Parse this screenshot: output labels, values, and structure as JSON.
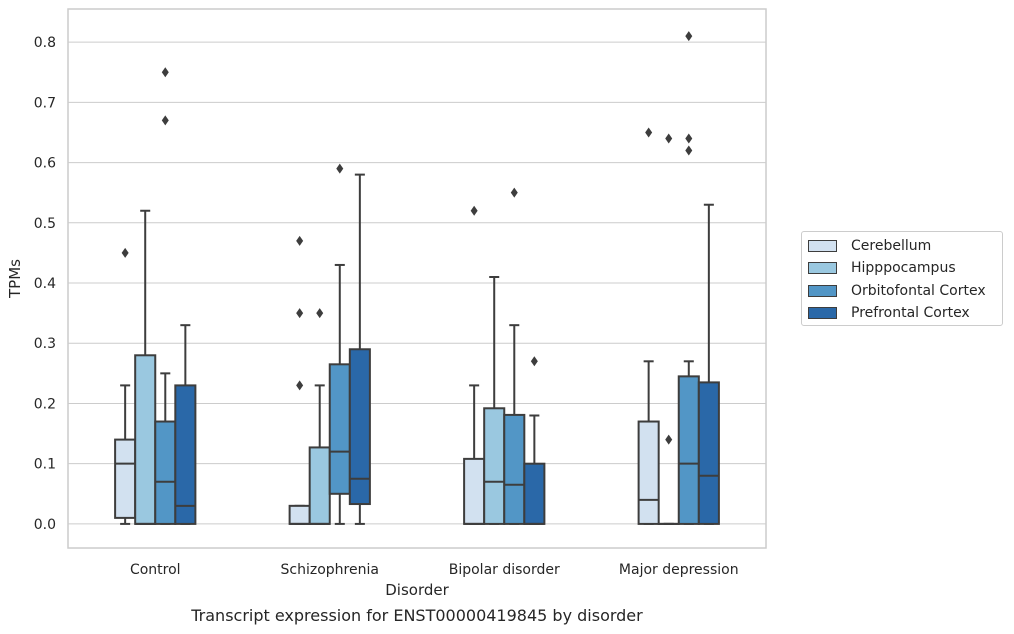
{
  "chart_data": {
    "type": "box",
    "xlabel": "Disorder",
    "ylabel": "TPMs",
    "ylim": [
      -0.04,
      0.855
    ],
    "yticks": [
      "0.0",
      "0.1",
      "0.2",
      "0.3",
      "0.4",
      "0.5",
      "0.6",
      "0.7",
      "0.8"
    ],
    "grid": true,
    "legend_position": "right",
    "categories": [
      "Control",
      "Schizophrenia",
      "Bipolar disorder",
      "Major depression"
    ],
    "series": [
      {
        "name": "Cerebellum",
        "color": "#d2e1f0",
        "boxes": [
          {
            "q1": 0.01,
            "median": 0.1,
            "q3": 0.14,
            "whislo": 0.0,
            "whishi": 0.23,
            "fliers": [
              0.45
            ]
          },
          {
            "q1": 0.0,
            "median": 0.0,
            "q3": 0.03,
            "whislo": 0.0,
            "whishi": 0.03,
            "fliers": [
              0.23,
              0.35,
              0.47
            ]
          },
          {
            "q1": 0.0,
            "median": 0.0,
            "q3": 0.108,
            "whislo": 0.0,
            "whishi": 0.23,
            "fliers": [
              0.52
            ]
          },
          {
            "q1": 0.0,
            "median": 0.04,
            "q3": 0.17,
            "whislo": 0.0,
            "whishi": 0.27,
            "fliers": [
              0.65
            ]
          }
        ]
      },
      {
        "name": "Hipppocampus",
        "color": "#9ac8e0",
        "boxes": [
          {
            "q1": 0.0,
            "median": 0.0,
            "q3": 0.28,
            "whislo": 0.0,
            "whishi": 0.52,
            "fliers": []
          },
          {
            "q1": 0.0,
            "median": 0.0,
            "q3": 0.127,
            "whislo": 0.0,
            "whishi": 0.23,
            "fliers": [
              0.35
            ]
          },
          {
            "q1": 0.0,
            "median": 0.07,
            "q3": 0.192,
            "whislo": 0.0,
            "whishi": 0.41,
            "fliers": []
          },
          {
            "q1": 0.0,
            "median": 0.0,
            "q3": 0.0,
            "whislo": 0.0,
            "whishi": 0.0,
            "fliers": [
              0.14,
              0.64
            ]
          }
        ]
      },
      {
        "name": "Orbitofontal Cortex",
        "color": "#5296c6",
        "boxes": [
          {
            "q1": 0.0,
            "median": 0.07,
            "q3": 0.17,
            "whislo": 0.0,
            "whishi": 0.25,
            "fliers": [
              0.67,
              0.75
            ]
          },
          {
            "q1": 0.05,
            "median": 0.12,
            "q3": 0.265,
            "whislo": 0.0,
            "whishi": 0.43,
            "fliers": [
              0.59
            ]
          },
          {
            "q1": 0.0,
            "median": 0.065,
            "q3": 0.181,
            "whislo": 0.0,
            "whishi": 0.33,
            "fliers": [
              0.55
            ]
          },
          {
            "q1": 0.0,
            "median": 0.1,
            "q3": 0.245,
            "whislo": 0.0,
            "whishi": 0.27,
            "fliers": [
              0.62,
              0.64,
              0.81
            ]
          }
        ]
      },
      {
        "name": "Prefrontal Cortex",
        "color": "#2a68a8",
        "boxes": [
          {
            "q1": 0.0,
            "median": 0.03,
            "q3": 0.23,
            "whislo": 0.0,
            "whishi": 0.33,
            "fliers": []
          },
          {
            "q1": 0.033,
            "median": 0.075,
            "q3": 0.29,
            "whislo": 0.0,
            "whishi": 0.58,
            "fliers": []
          },
          {
            "q1": 0.0,
            "median": 0.0,
            "q3": 0.1,
            "whislo": 0.0,
            "whishi": 0.18,
            "fliers": [
              0.27
            ]
          },
          {
            "q1": 0.0,
            "median": 0.08,
            "q3": 0.235,
            "whislo": 0.0,
            "whishi": 0.53,
            "fliers": []
          }
        ]
      }
    ]
  },
  "caption": "Transcript expression for ENST00000419845 by disorder"
}
